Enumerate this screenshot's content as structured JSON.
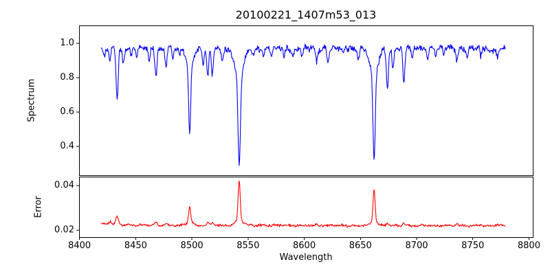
{
  "chart_data": {
    "type": "line",
    "title": "20100221_1407m53_013",
    "xlabel": "Wavelength",
    "grid": false,
    "legend": "none",
    "xlim": [
      8399.6,
      8803.4
    ],
    "x_range": [
      8419,
      8779
    ],
    "step": 0.5,
    "xticks": {
      "values": [
        8400,
        8450,
        8500,
        8550,
        8600,
        8650,
        8700,
        8750,
        8800
      ],
      "labels": [
        "8400",
        "8450",
        "8500",
        "8550",
        "8600",
        "8650",
        "8700",
        "8750",
        "8800"
      ]
    },
    "panels": [
      {
        "ylabel": "Spectrum",
        "color": "#0000ee",
        "ylim": [
          0.232,
          1.104
        ],
        "yticks": {
          "values": [
            0.4,
            0.6,
            0.8,
            1.0
          ],
          "labels": [
            "0.4",
            "0.6",
            "0.8",
            "1.0"
          ]
        },
        "continuum": 0.97,
        "noise": 0.022,
        "absorption_lines": [
          {
            "c": 8422.0,
            "d": 0.05,
            "w": 0.8
          },
          {
            "c": 8427.0,
            "d": 0.08,
            "w": 0.8
          },
          {
            "c": 8433.5,
            "d": 0.3,
            "w": 0.9
          },
          {
            "c": 8439.0,
            "d": 0.09,
            "w": 0.8
          },
          {
            "c": 8446.0,
            "d": 0.05,
            "w": 0.7
          },
          {
            "c": 8451.0,
            "d": 0.05,
            "w": 0.7
          },
          {
            "c": 8462.0,
            "d": 0.08,
            "w": 0.8
          },
          {
            "c": 8468.0,
            "d": 0.15,
            "w": 0.9
          },
          {
            "c": 8477.0,
            "d": 0.1,
            "w": 0.8
          },
          {
            "c": 8483.0,
            "d": 0.07,
            "w": 0.7
          },
          {
            "c": 8489.0,
            "d": 0.05,
            "w": 0.7
          },
          {
            "c": 8498.02,
            "d": 0.4,
            "w": 0.9
          },
          {
            "c": 8498.02,
            "d": 0.1,
            "w": 3.0
          },
          {
            "c": 8510.0,
            "d": 0.09,
            "w": 0.8
          },
          {
            "c": 8514.1,
            "d": 0.17,
            "w": 0.9
          },
          {
            "c": 8518.1,
            "d": 0.15,
            "w": 0.9
          },
          {
            "c": 8527.0,
            "d": 0.07,
            "w": 0.8
          },
          {
            "c": 8542.09,
            "d": 0.53,
            "w": 1.0
          },
          {
            "c": 8542.09,
            "d": 0.17,
            "w": 4.0
          },
          {
            "c": 8555.0,
            "d": 0.05,
            "w": 0.8
          },
          {
            "c": 8564.0,
            "d": 0.04,
            "w": 0.7
          },
          {
            "c": 8571.0,
            "d": 0.04,
            "w": 0.7
          },
          {
            "c": 8582.0,
            "d": 0.06,
            "w": 0.8
          },
          {
            "c": 8590.0,
            "d": 0.04,
            "w": 0.7
          },
          {
            "c": 8598.0,
            "d": 0.05,
            "w": 0.8
          },
          {
            "c": 8611.0,
            "d": 0.08,
            "w": 0.8
          },
          {
            "c": 8621.0,
            "d": 0.08,
            "w": 0.8
          },
          {
            "c": 8635.0,
            "d": 0.04,
            "w": 0.7
          },
          {
            "c": 8648.0,
            "d": 0.06,
            "w": 0.8
          },
          {
            "c": 8662.14,
            "d": 0.51,
            "w": 1.0
          },
          {
            "c": 8662.14,
            "d": 0.155,
            "w": 3.5
          },
          {
            "c": 8674.0,
            "d": 0.22,
            "w": 0.9
          },
          {
            "c": 8679.0,
            "d": 0.12,
            "w": 0.8
          },
          {
            "c": 8688.6,
            "d": 0.2,
            "w": 0.9
          },
          {
            "c": 8696.0,
            "d": 0.07,
            "w": 0.8
          },
          {
            "c": 8710.0,
            "d": 0.05,
            "w": 0.8
          },
          {
            "c": 8717.0,
            "d": 0.04,
            "w": 0.7
          },
          {
            "c": 8724.0,
            "d": 0.04,
            "w": 0.7
          },
          {
            "c": 8736.0,
            "d": 0.07,
            "w": 0.8
          },
          {
            "c": 8745.0,
            "d": 0.06,
            "w": 0.8
          },
          {
            "c": 8757.0,
            "d": 0.05,
            "w": 0.8
          },
          {
            "c": 8765.0,
            "d": 0.04,
            "w": 0.7
          },
          {
            "c": 8772.0,
            "d": 0.06,
            "w": 0.8
          }
        ]
      },
      {
        "ylabel": "Error",
        "color": "#ff0000",
        "ylim": [
          0.0169,
          0.044
        ],
        "yticks": {
          "values": [
            0.02,
            0.04
          ],
          "labels": [
            "0.02",
            "0.04"
          ]
        },
        "baseline": 0.0223,
        "noise": 0.0007,
        "peaks": [
          {
            "c": 8427.0,
            "h": 0.0012,
            "w": 1.0
          },
          {
            "c": 8433.5,
            "h": 0.0035,
            "w": 1.2
          },
          {
            "c": 8468.0,
            "h": 0.0013,
            "w": 1.0
          },
          {
            "c": 8477.0,
            "h": 0.0008,
            "w": 1.0
          },
          {
            "c": 8498.02,
            "h": 0.0072,
            "w": 1.0
          },
          {
            "c": 8498.02,
            "h": 0.0012,
            "w": 3.0
          },
          {
            "c": 8514.1,
            "h": 0.0012,
            "w": 1.0
          },
          {
            "c": 8518.1,
            "h": 0.001,
            "w": 1.0
          },
          {
            "c": 8542.09,
            "h": 0.0185,
            "w": 0.9
          },
          {
            "c": 8542.09,
            "h": 0.0022,
            "w": 3.5
          },
          {
            "c": 8611.0,
            "h": 0.0006,
            "w": 1.0
          },
          {
            "c": 8662.14,
            "h": 0.0148,
            "w": 0.9
          },
          {
            "c": 8662.14,
            "h": 0.0018,
            "w": 3.0
          },
          {
            "c": 8674.0,
            "h": 0.0012,
            "w": 1.0
          },
          {
            "c": 8688.6,
            "h": 0.0012,
            "w": 1.0
          },
          {
            "c": 8736.0,
            "h": 0.0007,
            "w": 1.0
          },
          {
            "c": 8757.0,
            "h": 0.0006,
            "w": 1.0
          },
          {
            "c": 8772.0,
            "h": 0.0008,
            "w": 1.0
          }
        ]
      }
    ]
  }
}
